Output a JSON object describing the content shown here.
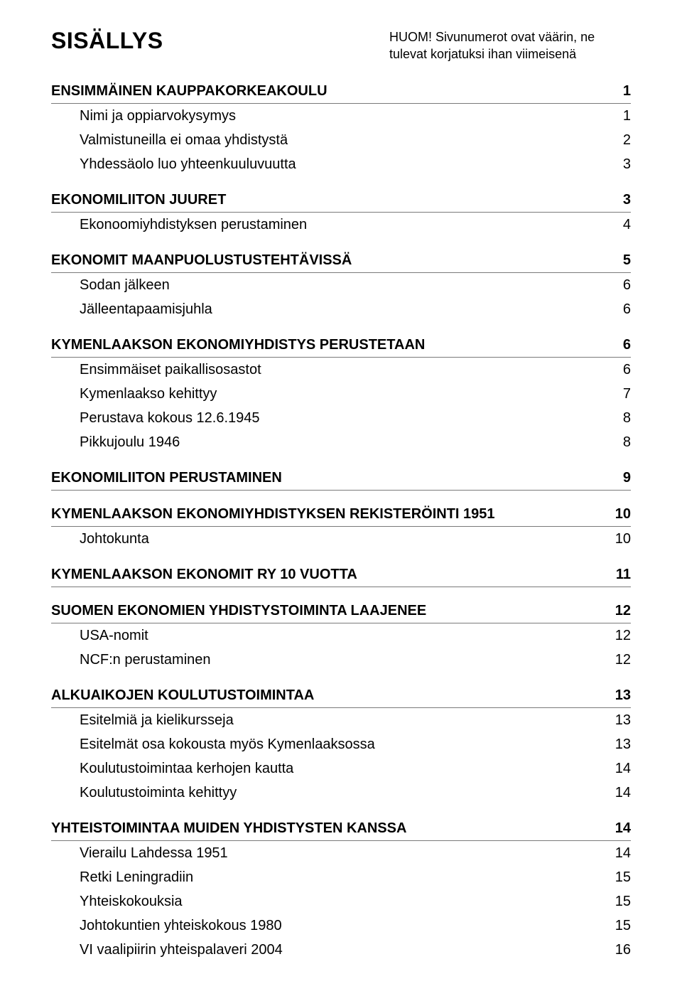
{
  "title": "SISÄLLYS",
  "note": "HUOM! Sivunumerot ovat väärin, ne tulevat korjatuksi ihan viimeisenä",
  "entries": [
    {
      "label": "ENSIMMÄINEN KAUPPAKORKEAKOULU",
      "page": "1",
      "heading": true,
      "indent": 0
    },
    {
      "label": "Nimi ja oppiarvokysymys",
      "page": "1",
      "heading": false,
      "indent": 1
    },
    {
      "label": "Valmistuneilla ei omaa yhdistystä",
      "page": "2",
      "heading": false,
      "indent": 1
    },
    {
      "label": "Yhdessäolo luo yhteenkuuluvuutta",
      "page": "3",
      "heading": false,
      "indent": 1
    },
    {
      "spacer": true
    },
    {
      "label": "EKONOMILIITON JUURET",
      "page": "3",
      "heading": true,
      "indent": 0
    },
    {
      "label": "Ekonoomiyhdistyksen perustaminen",
      "page": "4",
      "heading": false,
      "indent": 1
    },
    {
      "spacer": true
    },
    {
      "label": "EKONOMIT MAANPUOLUSTUSTEHTÄVISSÄ",
      "page": "5",
      "heading": true,
      "indent": 0
    },
    {
      "label": "Sodan jälkeen",
      "page": "6",
      "heading": false,
      "indent": 1
    },
    {
      "label": "Jälleentapaamisjuhla",
      "page": "6",
      "heading": false,
      "indent": 1
    },
    {
      "spacer": true
    },
    {
      "label": "KYMENLAAKSON EKONOMIYHDISTYS PERUSTETAAN",
      "page": "6",
      "heading": true,
      "indent": 0
    },
    {
      "label": "Ensimmäiset paikallisosastot",
      "page": "6",
      "heading": false,
      "indent": 1
    },
    {
      "label": "Kymenlaakso kehittyy",
      "page": "7",
      "heading": false,
      "indent": 1
    },
    {
      "label": "Perustava kokous 12.6.1945",
      "page": "8",
      "heading": false,
      "indent": 1
    },
    {
      "label": "Pikkujoulu 1946",
      "page": "8",
      "heading": false,
      "indent": 1
    },
    {
      "spacer": true
    },
    {
      "label": "EKONOMILIITON PERUSTAMINEN",
      "page": "9",
      "heading": true,
      "indent": 0
    },
    {
      "spacer": true
    },
    {
      "label": "KYMENLAAKSON EKONOMIYHDISTYKSEN REKISTERÖINTI 1951",
      "page": "10",
      "heading": true,
      "indent": 0
    },
    {
      "label": "Johtokunta",
      "page": "10",
      "heading": false,
      "indent": 1
    },
    {
      "spacer": true
    },
    {
      "label": "KYMENLAAKSON EKONOMIT RY 10 VUOTTA",
      "page": "11",
      "heading": true,
      "indent": 0
    },
    {
      "spacer": true
    },
    {
      "label": "SUOMEN EKONOMIEN YHDISTYSTOIMINTA LAAJENEE",
      "page": "12",
      "heading": true,
      "indent": 0
    },
    {
      "label": "USA-nomit",
      "page": "12",
      "heading": false,
      "indent": 1
    },
    {
      "label": "NCF:n perustaminen",
      "page": "12",
      "heading": false,
      "indent": 1
    },
    {
      "spacer": true
    },
    {
      "label": "ALKUAIKOJEN KOULUTUSTOIMINTAA",
      "page": "13",
      "heading": true,
      "indent": 0
    },
    {
      "label": "Esitelmiä ja kielikursseja",
      "page": "13",
      "heading": false,
      "indent": 1
    },
    {
      "label": "Esitelmät osa kokousta myös Kymenlaaksossa",
      "page": "13",
      "heading": false,
      "indent": 1
    },
    {
      "label": "Koulutustoimintaa kerhojen kautta",
      "page": "14",
      "heading": false,
      "indent": 1
    },
    {
      "label": "Koulutustoiminta kehittyy",
      "page": "14",
      "heading": false,
      "indent": 1
    },
    {
      "spacer": true
    },
    {
      "label": "YHTEISTOIMINTAA MUIDEN YHDISTYSTEN KANSSA",
      "page": "14",
      "heading": true,
      "indent": 0
    },
    {
      "label": "Vierailu Lahdessa 1951",
      "page": "14",
      "heading": false,
      "indent": 1
    },
    {
      "label": "Retki Leningradiin",
      "page": "15",
      "heading": false,
      "indent": 1
    },
    {
      "label": "Yhteiskokouksia",
      "page": "15",
      "heading": false,
      "indent": 1
    },
    {
      "label": "Johtokuntien yhteiskokous 1980",
      "page": "15",
      "heading": false,
      "indent": 1
    },
    {
      "label": "VI vaalipiirin yhteispalaveri 2004",
      "page": "16",
      "heading": false,
      "indent": 1
    }
  ]
}
